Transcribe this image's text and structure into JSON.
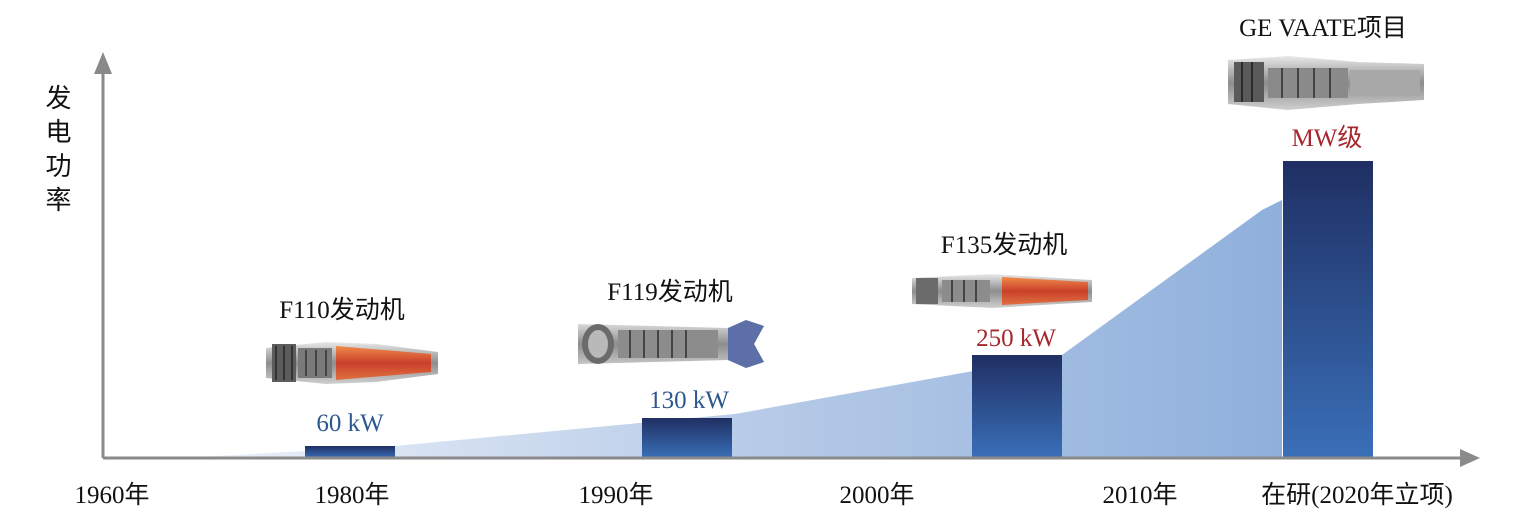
{
  "chart_data": {
    "type": "bar",
    "ylabel": "发电功率",
    "x_ticks": [
      "1960年",
      "1980年",
      "1990年",
      "2000年",
      "2010年",
      "在研(2020年立项)"
    ],
    "categories": [
      "F110发动机",
      "F119发动机",
      "F135发动机",
      "GE VAATE项目"
    ],
    "value_labels": [
      "60 kW",
      "130 kW",
      "250 kW",
      "MW级"
    ],
    "values_kw": [
      60,
      130,
      250,
      1000
    ],
    "engine_icons": [
      "turbofan-f110",
      "turbofan-f119",
      "turbofan-f135",
      "turbofan-vaate"
    ],
    "colors": {
      "bar_top": "#1f2f63",
      "bar_bottom": "#3a6fb8",
      "area": "#a9c0e2",
      "axis": "#8a8a8a",
      "value_blue": "#2e5790",
      "value_red": "#a6272d"
    }
  }
}
